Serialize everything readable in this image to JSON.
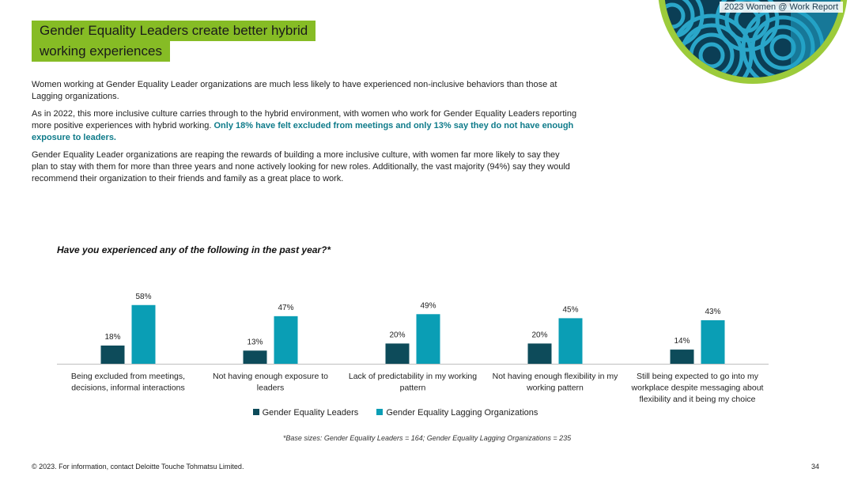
{
  "header": {
    "report_tag": "2023 Women @ Work Report",
    "title_line1": "Gender Equality Leaders create better hybrid",
    "title_line2": "working experiences"
  },
  "body": {
    "p1": "Women working at Gender Equality Leader organizations are much less likely to have experienced non-inclusive behaviors than those at Lagging organizations.",
    "p2_a": "As in 2022, this more inclusive culture carries through to the hybrid environment, with women who work for Gender Equality Leaders reporting more positive experiences with hybrid working.",
    "p2_highlight": "Only 18% have felt excluded from meetings and only 13% say they do not have enough exposure to leaders.",
    "p3": "Gender Equality Leader organizations are reaping the rewards of building a more inclusive culture, with women far more likely to say they plan to stay with them for more than three years and none actively looking for new roles. Additionally, the vast majority (94%) say they would recommend their organization to their friends and family as a great place to work."
  },
  "colors": {
    "accent_green": "#86bc25",
    "leaders": "#0d4b5a",
    "lagging": "#0a9eb5",
    "highlight_text": "#0f7b8a"
  },
  "chart_data": {
    "type": "bar",
    "title": "Have you experienced any of the following in the past year?*",
    "categories": [
      [
        "Being excluded from meetings,",
        "decisions, informal interactions"
      ],
      [
        "Not having enough exposure to",
        "leaders"
      ],
      [
        "Lack of predictability in my working",
        "pattern"
      ],
      [
        "Not having enough flexibility in my",
        "working pattern"
      ],
      [
        "Still being expected to go into my",
        "workplace despite messaging about",
        "flexibility and it being my choice"
      ]
    ],
    "series": [
      {
        "name": "Gender Equality Leaders",
        "values": [
          18,
          13,
          20,
          20,
          14
        ],
        "labels": [
          "18%",
          "13%",
          "20%",
          "20%",
          "14%"
        ],
        "color": "#0d4b5a"
      },
      {
        "name": "Gender Equality Lagging Organizations",
        "values": [
          58,
          47,
          49,
          45,
          43
        ],
        "labels": [
          "58%",
          "47%",
          "49%",
          "45%",
          "43%"
        ],
        "color": "#0a9eb5"
      }
    ],
    "ylim": [
      0,
      100
    ],
    "grid": false,
    "legend_position": "bottom"
  },
  "footnote": "*Base sizes: Gender Equality Leaders = 164; Gender Equality Lagging Organizations = 235",
  "footer": {
    "copyright": "© 2023. For information, contact Deloitte Touche Tohmatsu Limited.",
    "page_number": "34"
  }
}
